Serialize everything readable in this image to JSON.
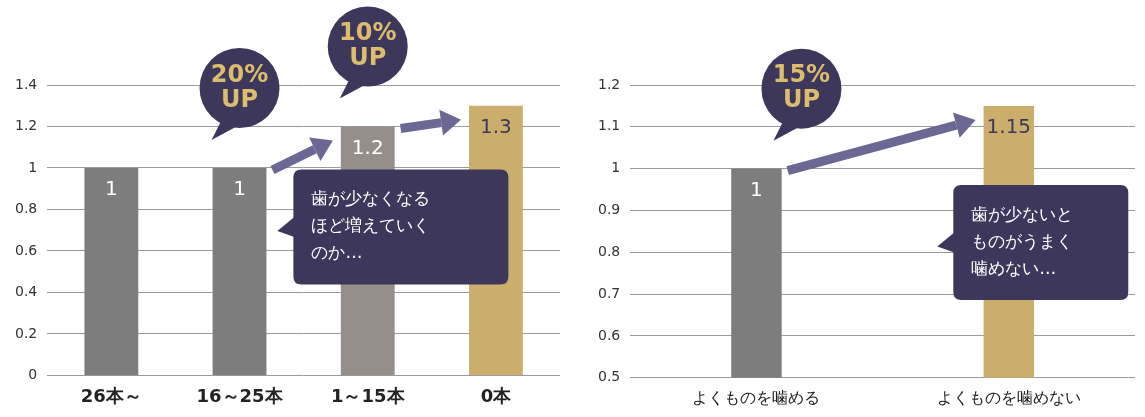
{
  "chart_data": [
    {
      "type": "bar",
      "categories": [
        "26本～",
        "16～25本",
        "1～15本",
        "0本"
      ],
      "values": [
        1,
        1,
        1.2,
        1.3
      ],
      "colors": [
        "#7d7d7d",
        "#7d7d7d",
        "#958e8b",
        "#ccae6c"
      ],
      "ylim": [
        0,
        1.4
      ],
      "yticks": [
        0,
        0.2,
        0.4,
        0.6,
        0.8,
        1,
        1.2,
        1.4
      ],
      "grid": true,
      "data_labels": true,
      "annotations": {
        "increase": [
          "20% UP",
          "10% UP"
        ],
        "comment": "歯が少なくなるほど増えていくのか…"
      }
    },
    {
      "type": "bar",
      "categories": [
        "よくものを噛める",
        "よくものを噛めない"
      ],
      "values": [
        1,
        1.15
      ],
      "colors": [
        "#7d7d7d",
        "#ccae6c"
      ],
      "ylim": [
        0.5,
        1.2
      ],
      "yticks": [
        0.5,
        0.6,
        0.7,
        0.8,
        0.9,
        1,
        1.1,
        1.2
      ],
      "grid": true,
      "data_labels": true,
      "annotations": {
        "increase": [
          "15% UP"
        ],
        "comment": "歯が少ないとものがうまく噛めない…"
      }
    }
  ]
}
